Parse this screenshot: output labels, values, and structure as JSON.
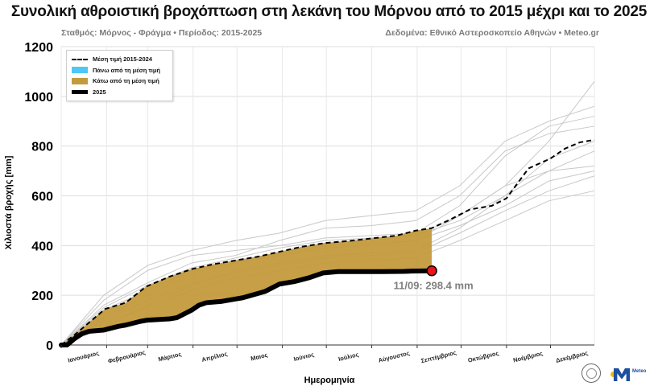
{
  "chart_data": {
    "type": "area",
    "title": "Συνολική αθροιστική βροχόπτωση στη λεκάνη του Μόρνου από το 2015 μέχρι και το 2025",
    "subtitle_left": "Σταθμός: Μόρνος - Φράγμα • Περίοδος: 2015-2025",
    "subtitle_right": "Δεδομένα: Εθνικό Αστεροσκοπείο Αθηνών • Meteo.gr",
    "xlabel": "Ημερομηνία",
    "ylabel": "Χιλιοστά βροχής [mm]",
    "ylim": [
      0,
      1200
    ],
    "yticks": [
      0,
      200,
      400,
      600,
      800,
      1000,
      1200
    ],
    "grid": true,
    "legend_position": "top-left",
    "months": [
      "Ιανουάριος",
      "Φεβρουάριος",
      "Μάρτιος",
      "Απρίλιος",
      "Μαιος",
      "Ιούνιος",
      "Ιούλιος",
      "Αύγουστος",
      "Σεπτέμβριος",
      "Οκτώβριος",
      "Νοέμβριος",
      "Δεκέμβριος"
    ],
    "legend": [
      {
        "label": "Μέση τιμή 2015-2024",
        "style": "dashed-line"
      },
      {
        "label": "Πάνω από τη μέση τιμή",
        "style": "fill",
        "color": "#4dc8f0"
      },
      {
        "label": "Κάτω από τη μέση τιμή",
        "style": "fill",
        "color": "#c49a3c"
      },
      {
        "label": "2025",
        "style": "thick-line"
      }
    ],
    "series": [
      {
        "name": "Μέση τιμή 2015-2024",
        "x": [
          1,
          10,
          20,
          31,
          45,
          59,
          75,
          90,
          105,
          120,
          135,
          150,
          165,
          181,
          200,
          215,
          230,
          243,
          254,
          265,
          280,
          295,
          305,
          320,
          335,
          345,
          355,
          365
        ],
        "y": [
          0,
          40,
          90,
          145,
          170,
          235,
          275,
          305,
          325,
          340,
          355,
          375,
          395,
          410,
          420,
          430,
          440,
          460,
          470,
          500,
          545,
          560,
          590,
          710,
          750,
          790,
          815,
          825
        ]
      },
      {
        "name": "2025",
        "x": [
          1,
          5,
          10,
          15,
          20,
          30,
          40,
          45,
          55,
          60,
          75,
          80,
          90,
          95,
          100,
          110,
          120,
          125,
          140,
          150,
          160,
          170,
          180,
          190,
          200,
          220,
          235,
          240,
          254
        ],
        "y": [
          0,
          0,
          25,
          45,
          55,
          60,
          75,
          80,
          95,
          100,
          105,
          110,
          140,
          160,
          170,
          175,
          185,
          190,
          215,
          245,
          255,
          270,
          290,
          295,
          295,
          295,
          296,
          297,
          298.4
        ]
      }
    ],
    "historical_years": [
      {
        "x": [
          1,
          30,
          60,
          90,
          120,
          150,
          181,
          212,
          243,
          273,
          304,
          334,
          365
        ],
        "y": [
          0,
          140,
          220,
          300,
          330,
          360,
          390,
          400,
          420,
          520,
          640,
          820,
          1060
        ]
      },
      {
        "x": [
          1,
          30,
          60,
          90,
          120,
          150,
          181,
          212,
          243,
          273,
          304,
          334,
          365
        ],
        "y": [
          0,
          110,
          200,
          290,
          330,
          370,
          410,
          420,
          440,
          520,
          640,
          700,
          720
        ]
      },
      {
        "x": [
          1,
          30,
          60,
          90,
          120,
          150,
          181,
          212,
          243,
          273,
          304,
          334,
          365
        ],
        "y": [
          0,
          180,
          300,
          360,
          380,
          400,
          430,
          440,
          450,
          560,
          760,
          880,
          920
        ]
      },
      {
        "x": [
          1,
          30,
          60,
          90,
          120,
          150,
          181,
          212,
          243,
          273,
          304,
          334,
          365
        ],
        "y": [
          0,
          90,
          150,
          220,
          270,
          300,
          330,
          340,
          350,
          420,
          500,
          580,
          620
        ]
      },
      {
        "x": [
          1,
          30,
          60,
          90,
          120,
          150,
          181,
          212,
          243,
          273,
          304,
          334,
          365
        ],
        "y": [
          0,
          160,
          250,
          330,
          360,
          420,
          470,
          480,
          500,
          600,
          780,
          850,
          880
        ]
      },
      {
        "x": [
          1,
          30,
          60,
          90,
          120,
          150,
          181,
          212,
          243,
          273,
          304,
          334,
          365
        ],
        "y": [
          0,
          130,
          220,
          300,
          340,
          370,
          400,
          410,
          420,
          480,
          560,
          660,
          700
        ]
      },
      {
        "x": [
          1,
          30,
          60,
          90,
          120,
          150,
          181,
          212,
          243,
          273,
          304,
          334,
          365
        ],
        "y": [
          0,
          70,
          160,
          240,
          300,
          330,
          360,
          370,
          380,
          470,
          600,
          750,
          820
        ]
      },
      {
        "x": [
          1,
          30,
          60,
          90,
          120,
          150,
          181,
          212,
          243,
          273,
          304,
          334,
          365
        ],
        "y": [
          0,
          200,
          320,
          380,
          420,
          450,
          500,
          520,
          540,
          640,
          820,
          900,
          960
        ]
      },
      {
        "x": [
          1,
          30,
          60,
          90,
          120,
          150,
          181,
          212,
          243,
          273,
          304,
          334,
          365
        ],
        "y": [
          0,
          100,
          180,
          250,
          290,
          320,
          350,
          360,
          370,
          450,
          540,
          620,
          680
        ]
      },
      {
        "x": [
          1,
          30,
          60,
          90,
          120,
          150,
          181,
          212,
          243,
          273,
          304,
          334,
          365
        ],
        "y": [
          0,
          150,
          240,
          310,
          350,
          390,
          420,
          430,
          440,
          500,
          600,
          700,
          780
        ]
      }
    ],
    "annotation": {
      "text": "11/09: 298.4 mm",
      "day": 254,
      "value": 298.4
    },
    "colors": {
      "above": "#4dc8f0",
      "below": "#c49a3c",
      "endpoint": "#e8141c",
      "history": "#c8c8c8"
    }
  }
}
